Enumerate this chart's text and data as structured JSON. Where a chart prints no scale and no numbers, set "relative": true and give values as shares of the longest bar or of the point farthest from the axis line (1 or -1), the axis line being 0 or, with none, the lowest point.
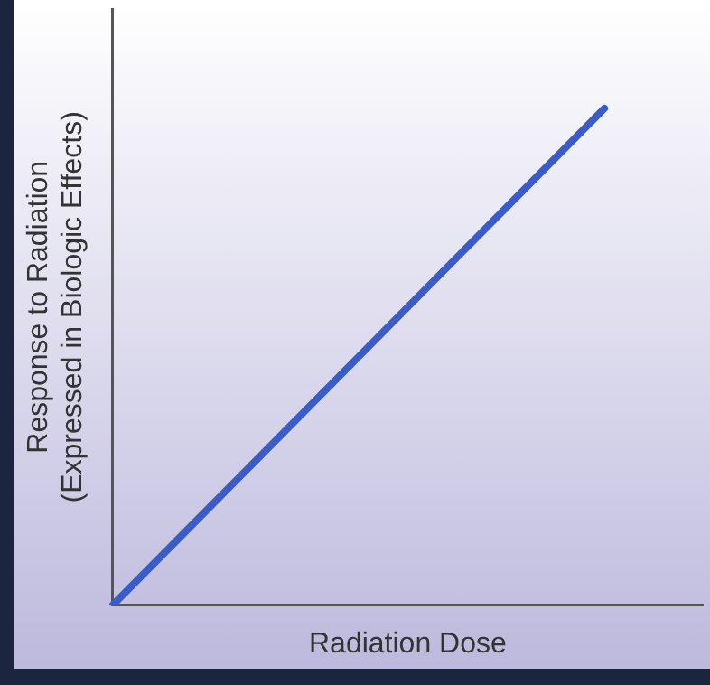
{
  "chart_data": {
    "type": "line",
    "relative": true,
    "xlabel": "Radiation Dose",
    "ylabel": "Response to Radiation\n(Expressed in Biologic Effects)",
    "categories": [
      null,
      null,
      null,
      null,
      null,
      null,
      null
    ],
    "series": [
      {
        "color": "#3b5cc4",
        "values": [
          0,
          0.2,
          0.4,
          0.6,
          0.8,
          1,
          null
        ]
      }
    ],
    "grid": false,
    "legend": false,
    "marker": "none",
    "line_style": "solid"
  }
}
